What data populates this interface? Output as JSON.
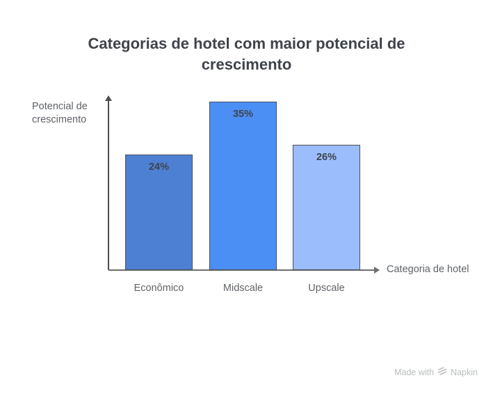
{
  "title": "Categorias de hotel com maior potencial de crescimento",
  "axes": {
    "y_label": "Potencial de crescimento",
    "x_label": "Categoria de hotel"
  },
  "watermark": {
    "prefix": "Made with",
    "brand": "Napkin"
  },
  "colors": {
    "bar_fills": [
      "#4d80d3",
      "#4b8ff5",
      "#9bbdfb"
    ],
    "bar_border": "#4a4e57",
    "y_axis": "#4d4d4d",
    "x_axis": "#6e6e6e",
    "title_text": "#3f434a",
    "value_label_text": "#3f444c",
    "category_text": "#5f6368",
    "watermark_text": "#b9bcbf"
  },
  "chart_data": {
    "type": "bar",
    "title": "Categorias de hotel com maior potencial de crescimento",
    "categories": [
      "Econômico",
      "Midscale",
      "Upscale"
    ],
    "values": [
      24,
      35,
      26
    ],
    "value_labels": [
      "24%",
      "35%",
      "26%"
    ],
    "xlabel": "Categoria de hotel",
    "ylabel": "Potencial de crescimento",
    "ylim": [
      0,
      38
    ],
    "unit": "%",
    "grid": false,
    "legend": false
  }
}
